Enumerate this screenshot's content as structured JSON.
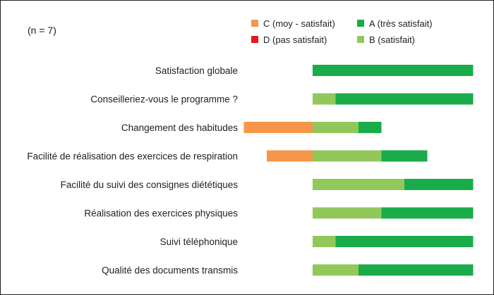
{
  "note": "(n = 7)",
  "chart_data": {
    "type": "bar",
    "orientation": "horizontal",
    "stacking": "diverging",
    "n": 7,
    "categories": [
      "Satisfaction globale",
      "Conseilleriez-vous le programme ?",
      "Changement des habitudes",
      "Facilité de réalisation des exercices de respiration",
      "Facilité du suivi des consignes diététiques",
      "Réalisation des exercices physiques",
      "Suivi téléphonique",
      "Qualité des documents transmis"
    ],
    "series": [
      {
        "key": "A",
        "name": "A (très satisfait)",
        "color": "#1aab4a",
        "side": "positive",
        "values": [
          7,
          6,
          1,
          2,
          3,
          4,
          6,
          5
        ]
      },
      {
        "key": "B",
        "name": "B (satisfait)",
        "color": "#92c85a",
        "side": "positive",
        "values": [
          0,
          1,
          2,
          3,
          4,
          3,
          1,
          2
        ]
      },
      {
        "key": "C",
        "name": "C (moy - satisfait)",
        "color": "#f5964a",
        "side": "negative",
        "values": [
          0,
          0,
          3,
          2,
          0,
          0,
          0,
          0
        ]
      },
      {
        "key": "D",
        "name": "D (pas satisfait)",
        "color": "#e31b23",
        "side": "negative",
        "values": [
          0,
          0,
          0,
          0,
          0,
          0,
          0,
          0
        ]
      }
    ],
    "legend": {
      "position": "top-right",
      "order": [
        "C",
        "A",
        "D",
        "B"
      ]
    },
    "xlim": [
      -3,
      7
    ],
    "grid": false,
    "axes_visible": false
  }
}
